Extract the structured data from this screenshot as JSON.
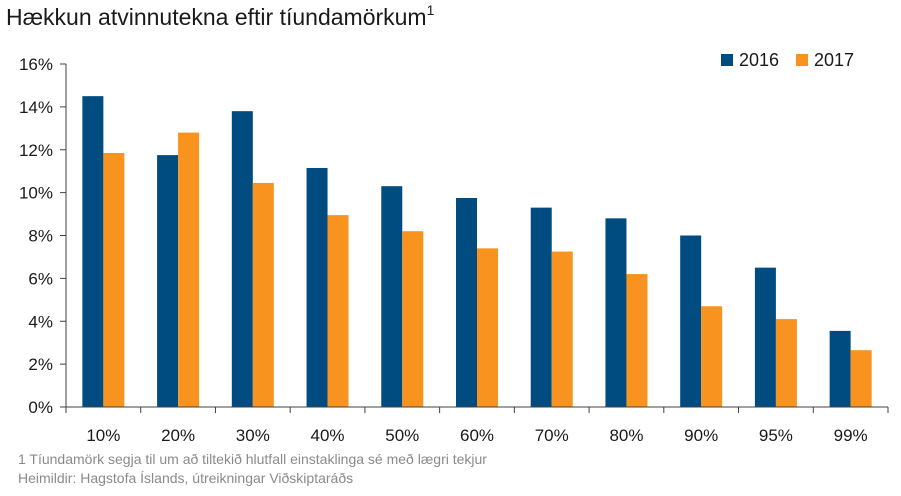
{
  "title": "Hækkun atvinnutekna eftir tíundamörkum",
  "title_footnote_mark": "1",
  "footnote": "1 Tíundamörk segja til um að tiltekið hlutfall einstaklinga sé með lægri tekjur",
  "source": "Heimildir: Hagstofa Íslands, útreikningar Viðskiptaráðs",
  "chart_data": {
    "type": "bar",
    "categories": [
      "10%",
      "20%",
      "30%",
      "40%",
      "50%",
      "60%",
      "70%",
      "80%",
      "90%",
      "95%",
      "99%"
    ],
    "series": [
      {
        "name": "2016",
        "color": "#004b80",
        "values": [
          14.5,
          11.75,
          13.8,
          11.15,
          10.3,
          9.75,
          9.3,
          8.8,
          8.0,
          6.5,
          3.55
        ]
      },
      {
        "name": "2017",
        "color": "#f7931e",
        "values": [
          11.85,
          12.8,
          10.45,
          8.95,
          8.2,
          7.4,
          7.25,
          6.2,
          4.7,
          4.1,
          2.65
        ]
      }
    ],
    "ylim": [
      0,
      16
    ],
    "yticks": [
      0,
      2,
      4,
      6,
      8,
      10,
      12,
      14,
      16
    ],
    "ytick_labels": [
      "0%",
      "2%",
      "4%",
      "6%",
      "8%",
      "10%",
      "12%",
      "14%",
      "16%"
    ],
    "xlabel": "",
    "ylabel": "",
    "grid": false,
    "legend_position": "top-right"
  }
}
